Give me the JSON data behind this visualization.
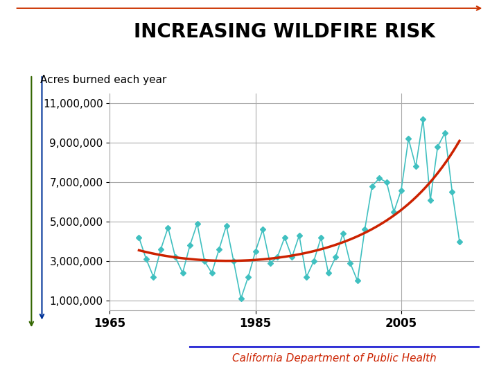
{
  "title": "INCREASING WILDFIRE RISK",
  "ylabel": "Acres burned each year",
  "title_fontsize": 20,
  "ylabel_fontsize": 11,
  "background_color": "#ffffff",
  "line_color": "#40C0C0",
  "trend_color": "#CC2200",
  "marker": "D",
  "marker_size": 4,
  "years": [
    1969,
    1970,
    1971,
    1972,
    1973,
    1974,
    1975,
    1976,
    1977,
    1978,
    1979,
    1980,
    1981,
    1982,
    1983,
    1984,
    1985,
    1986,
    1987,
    1988,
    1989,
    1990,
    1991,
    1992,
    1993,
    1994,
    1995,
    1996,
    1997,
    1998,
    1999,
    2000,
    2001,
    2002,
    2003,
    2004,
    2005,
    2006,
    2007,
    2008,
    2009,
    2010,
    2011,
    2012,
    2013
  ],
  "acres": [
    4200000,
    3100000,
    2200000,
    3600000,
    4700000,
    3200000,
    2400000,
    3800000,
    4900000,
    3000000,
    2400000,
    3600000,
    4800000,
    3000000,
    1100000,
    2200000,
    3500000,
    4600000,
    2900000,
    3200000,
    4200000,
    3200000,
    4300000,
    2200000,
    3000000,
    4200000,
    2400000,
    3200000,
    4400000,
    2900000,
    2000000,
    4600000,
    6800000,
    7200000,
    7000000,
    5500000,
    6600000,
    9200000,
    7800000,
    10200000,
    6100000,
    8800000,
    9500000,
    6500000,
    4000000
  ],
  "xticks": [
    1965,
    1985,
    2005
  ],
  "yticks": [
    1000000,
    3000000,
    5000000,
    7000000,
    9000000,
    11000000
  ],
  "ytick_labels": [
    "1,000,000",
    "3,000,000",
    "5,000,000",
    "7,000,000",
    "9,000,000",
    "11,000,000"
  ],
  "xlim": [
    1965,
    2015
  ],
  "ylim": [
    500000,
    11500000
  ],
  "grid_color": "#aaaaaa",
  "decoration_line1_color": "#CC3300",
  "decoration_line2_color": "#003399",
  "decoration_line3_color": "#336600",
  "footer_line_color": "#0000CC",
  "footer_text": "California Department of Public Health",
  "footer_fontsize": 11
}
